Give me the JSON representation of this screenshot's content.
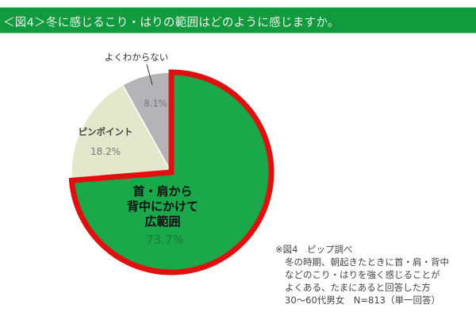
{
  "header": {
    "title": "＜図4＞冬に感じるこり・はりの範囲はどのように感じますか。"
  },
  "chart_data": {
    "type": "pie",
    "title": "＜図4＞冬に感じるこり・はりの範囲はどのように感じますか。",
    "start": "12 o'clock, clockwise",
    "slices": [
      {
        "label_lines": [
          "首・肩から",
          "背中にかけて",
          "広範囲"
        ],
        "value": 73.7,
        "value_label": "73.7%",
        "color": "#1aa84a",
        "highlight": "#e01010"
      },
      {
        "label_lines": [
          "ピンポイント"
        ],
        "value": 18.2,
        "value_label": "18.2%",
        "color": "#e3e8cc"
      },
      {
        "label_lines": [
          "よくわからない"
        ],
        "value": 8.1,
        "value_label": "8.1%",
        "color": "#b4b4b6"
      }
    ]
  },
  "note": {
    "lines": [
      "※図4　ピップ調べ",
      "冬の時期、朝起きたときに首・肩・背中",
      "などのこり・はりを強く感じることが",
      "よくある、たまにあると回答した方",
      "30〜60代男女　N=813（単一回答）"
    ]
  }
}
